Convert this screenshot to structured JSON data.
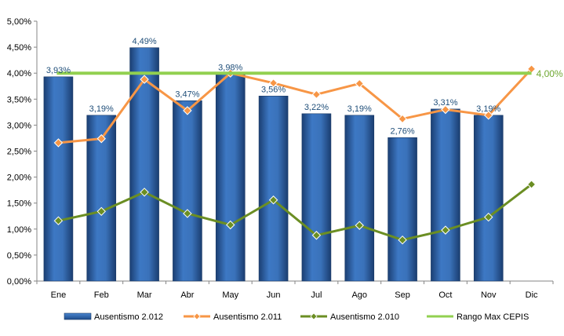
{
  "chart_data": {
    "type": "bar",
    "title": "",
    "xlabel": "",
    "ylabel": "",
    "ylim": [
      0,
      5
    ],
    "y_tick_format": "percent_comma_2",
    "y_ticks": [
      "0,00%",
      "0,50%",
      "1,00%",
      "1,50%",
      "2,00%",
      "2,50%",
      "3,00%",
      "3,50%",
      "4,00%",
      "4,50%",
      "5,00%"
    ],
    "categories": [
      "Ene",
      "Feb",
      "Mar",
      "Abr",
      "May",
      "Jun",
      "Jul",
      "Ago",
      "Sep",
      "Oct",
      "Nov",
      "Dic"
    ],
    "grid": false,
    "legend_position": "bottom",
    "series": [
      {
        "name": "Ausentismo 2.012",
        "kind": "bar",
        "color": "#2E65AE",
        "values": [
          3.93,
          3.19,
          4.49,
          3.47,
          3.98,
          3.56,
          3.22,
          3.19,
          2.76,
          3.31,
          3.19,
          null
        ],
        "labels": [
          "3,93%",
          "3,19%",
          "4,49%",
          "3,47%",
          "3,98%",
          "3,56%",
          "3,22%",
          "3,19%",
          "2,76%",
          "3,31%",
          "3,19%",
          ""
        ]
      },
      {
        "name": "Ausentismo 2.011",
        "kind": "line",
        "marker": "diamond",
        "color": "#F79646",
        "values": [
          2.66,
          2.74,
          3.88,
          3.28,
          4.0,
          3.81,
          3.59,
          3.8,
          3.12,
          3.3,
          3.19,
          4.08
        ]
      },
      {
        "name": "Ausentismo 2.010",
        "kind": "line",
        "marker": "diamond",
        "color": "#6B8E23",
        "values": [
          1.16,
          1.34,
          1.71,
          1.3,
          1.08,
          1.56,
          0.88,
          1.07,
          0.79,
          0.98,
          1.23,
          1.86
        ]
      },
      {
        "name": "Rango Max CEPIS",
        "kind": "line",
        "marker": "none",
        "color": "#92D050",
        "values": [
          4.0,
          4.0,
          4.0,
          4.0,
          4.0,
          4.0,
          4.0,
          4.0,
          4.0,
          4.0,
          4.0,
          4.0
        ],
        "end_label": "4,00%"
      }
    ]
  }
}
